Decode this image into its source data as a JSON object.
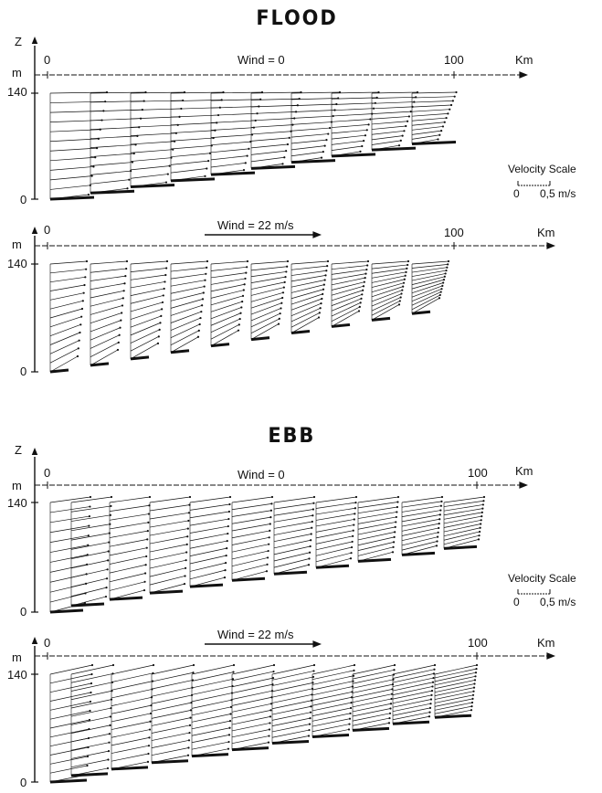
{
  "titles": {
    "flood": "FLOOD",
    "ebb": "EBB"
  },
  "axis": {
    "z": "Z",
    "unit_m": "m",
    "km": "Km",
    "x0": "0",
    "x100": "100",
    "z140": "140",
    "z0": "0"
  },
  "panels": [
    {
      "wind_label": "Wind = 0",
      "wind_arrow": false,
      "regime": "flood"
    },
    {
      "wind_label": "Wind = 22 m/s",
      "wind_arrow": true,
      "regime": "flood"
    },
    {
      "wind_label": "Wind = 0",
      "wind_arrow": false,
      "regime": "ebb"
    },
    {
      "wind_label": "Wind = 22 m/s",
      "wind_arrow": true,
      "regime": "ebb"
    }
  ],
  "velocity_scale": {
    "title": "Velocity Scale",
    "zero": "0",
    "value": "0,5 m/s"
  },
  "colors": {
    "ink": "#111111",
    "background": "#ffffff"
  }
}
